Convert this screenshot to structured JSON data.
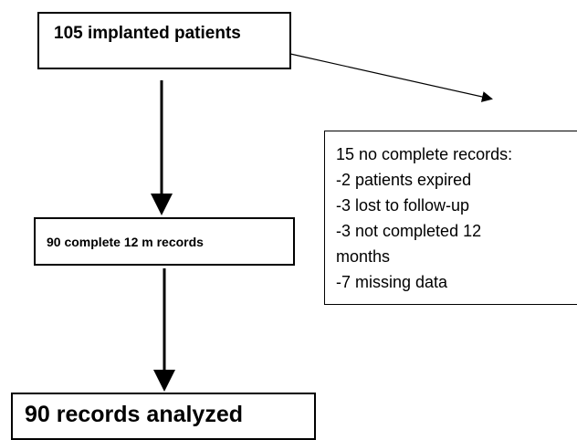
{
  "flowchart": {
    "start": {
      "text": "105 implanted patients"
    },
    "middle": {
      "text": "90 complete 12 m records"
    },
    "end": {
      "text": "90 records analyzed"
    },
    "exclusion": {
      "lines": [
        "15 no complete records:",
        "-2 patients expired",
        "-3 lost to follow-up",
        "-3 not completed 12",
        "months",
        "-7 missing data"
      ]
    }
  },
  "colors": {
    "line": "#000000",
    "box_border": "#000000",
    "background": "#ffffff"
  }
}
